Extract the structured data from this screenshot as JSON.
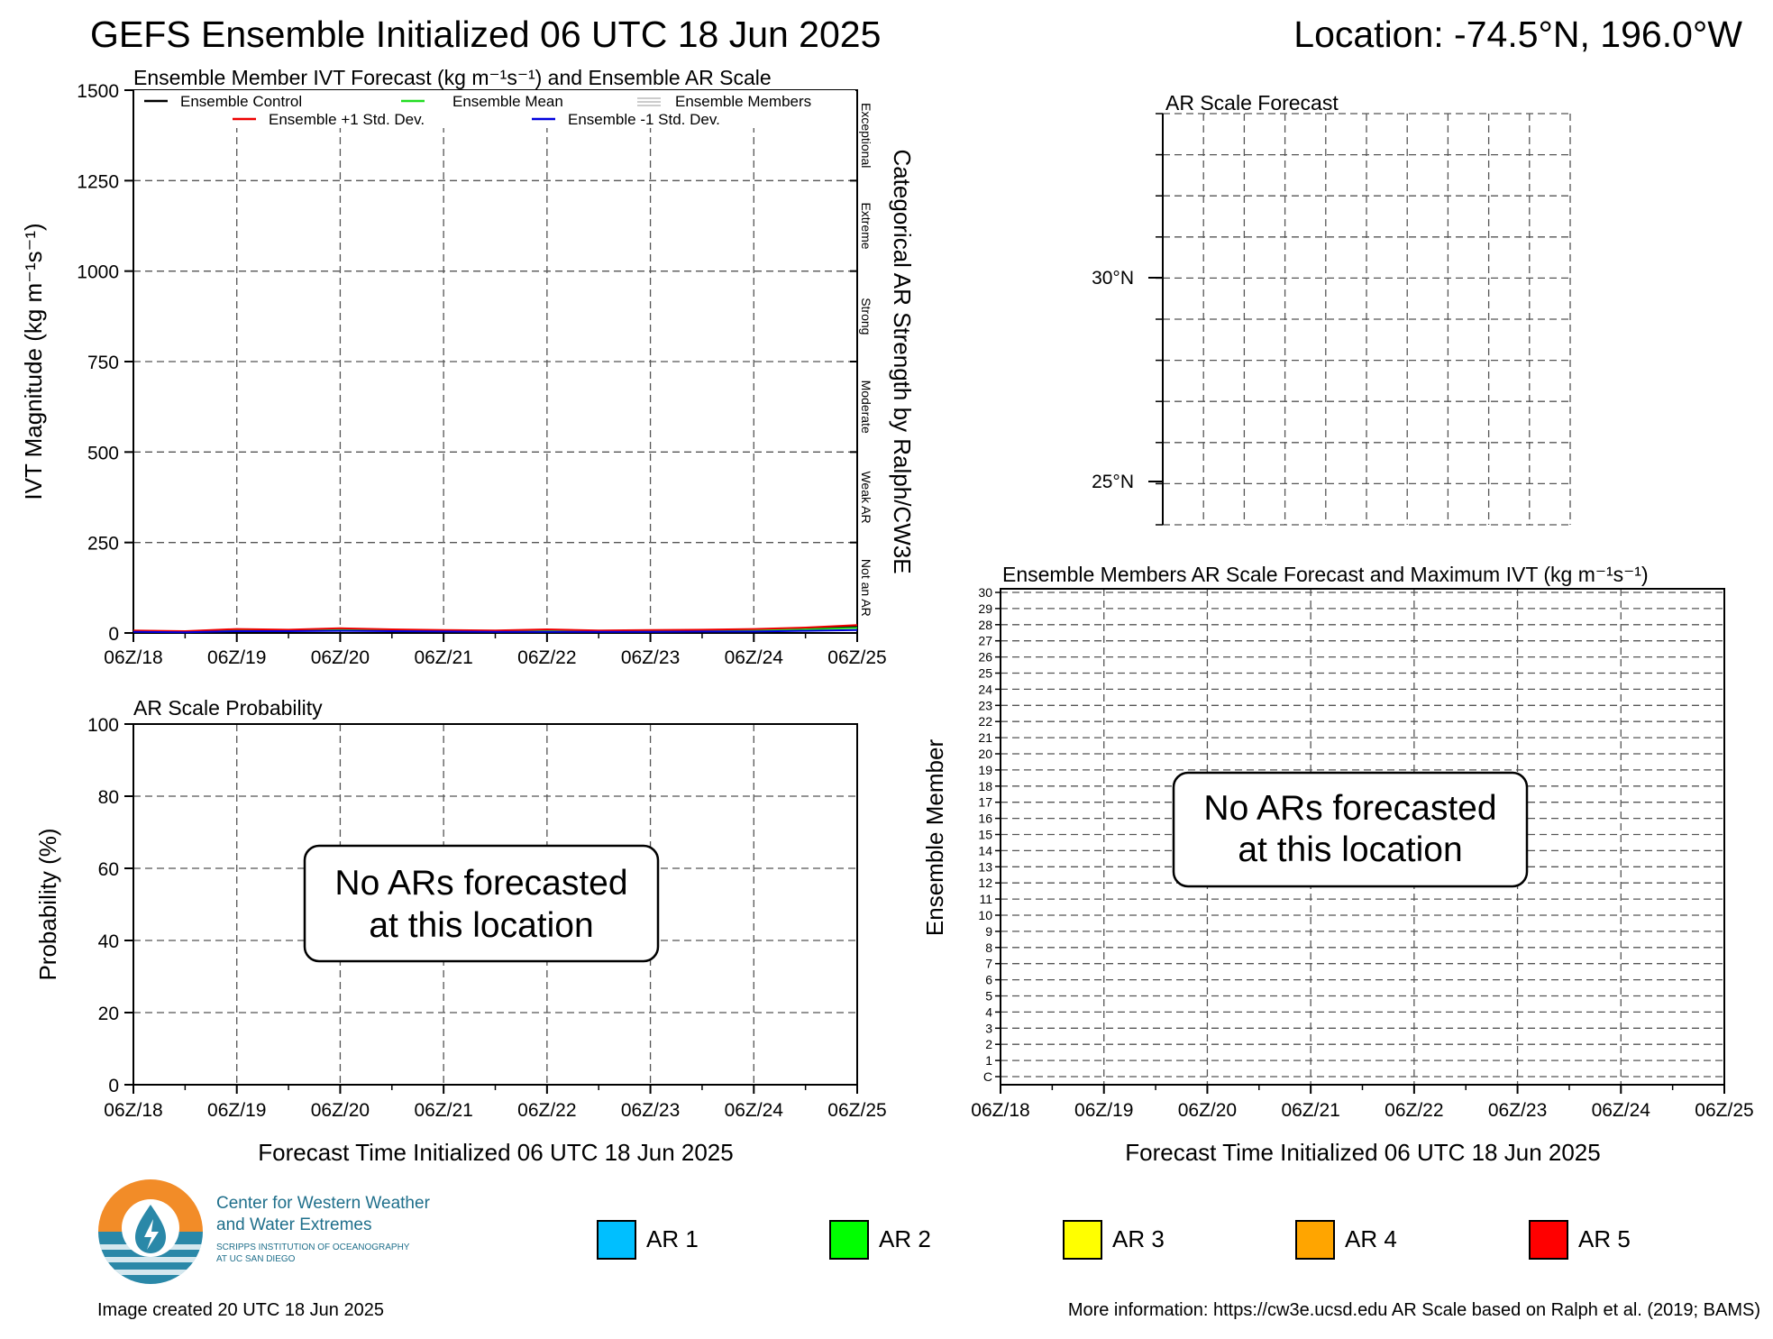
{
  "header": {
    "title": "GEFS Ensemble Initialized 06 UTC 18 Jun 2025",
    "location": "Location: -74.5°N, 196.0°W"
  },
  "ivt_panel": {
    "title": "Ensemble Member IVT Forecast (kg m⁻¹s⁻¹) and Ensemble AR Scale",
    "ylabel": "IVT Magnitude (kg m⁻¹s⁻¹)",
    "right_label": "Categorical AR Strength by Ralph/CW3E",
    "legend": [
      {
        "label": "Ensemble Control",
        "color": "#000000"
      },
      {
        "label": "Ensemble Mean",
        "color": "#22dd22"
      },
      {
        "label": "Ensemble Members",
        "color": "#bbbbbb"
      },
      {
        "label": "Ensemble +1 Std. Dev.",
        "color": "#ee0000"
      },
      {
        "label": "Ensemble -1 Std. Dev.",
        "color": "#0000dd"
      }
    ],
    "categories": [
      "Exceptional",
      "Extreme",
      "Strong",
      "Moderate",
      "Weak AR",
      "Not an AR"
    ]
  },
  "prob_panel": {
    "title": "AR Scale Probability",
    "ylabel": "Probability (%)",
    "xlabel": "Forecast Time Initialized 06 UTC 18 Jun 2025",
    "message_line1": "No ARs forecasted",
    "message_line2": "at this location"
  },
  "map_panel": {
    "title": "AR Scale Forecast",
    "lat_labels": [
      "30°N",
      "25°N"
    ]
  },
  "members_panel": {
    "title": "Ensemble Members AR Scale Forecast and Maximum IVT (kg m⁻¹s⁻¹)",
    "ylabel": "Ensemble Member",
    "xlabel": "Forecast Time Initialized 06 UTC 18 Jun 2025",
    "message_line1": "No ARs forecasted",
    "message_line2": "at this location",
    "member_labels": [
      "C",
      "1",
      "2",
      "3",
      "4",
      "5",
      "6",
      "7",
      "8",
      "9",
      "10",
      "11",
      "12",
      "13",
      "14",
      "15",
      "16",
      "17",
      "18",
      "19",
      "20",
      "21",
      "22",
      "23",
      "24",
      "25",
      "26",
      "27",
      "28",
      "29",
      "30"
    ]
  },
  "ar_legend": [
    {
      "label": "AR 1",
      "color": "#00bfff"
    },
    {
      "label": "AR 2",
      "color": "#00ff00"
    },
    {
      "label": "AR 3",
      "color": "#ffff00"
    },
    {
      "label": "AR 4",
      "color": "#ffa500"
    },
    {
      "label": "AR 5",
      "color": "#ff0000"
    }
  ],
  "logo": {
    "line1": "Center for Western Weather",
    "line2": "and Water Extremes",
    "line3": "SCRIPPS INSTITUTION OF OCEANOGRAPHY",
    "line4": "AT UC SAN DIEGO"
  },
  "footer": {
    "created": "Image created 20 UTC 18 Jun 2025",
    "more_info": "More information: https://cw3e.ucsd.edu AR Scale based on Ralph et al. (2019; BAMS)"
  },
  "chart_data": [
    {
      "type": "line",
      "title": "Ensemble Member IVT Forecast (kg m⁻¹s⁻¹) and Ensemble AR Scale",
      "ylabel": "IVT Magnitude (kg m⁻¹s⁻¹)",
      "x_ticks": [
        "06Z/18",
        "06Z/19",
        "06Z/20",
        "06Z/21",
        "06Z/22",
        "06Z/23",
        "06Z/24",
        "06Z/25"
      ],
      "x_range_hours": [
        0,
        168
      ],
      "ylim": [
        0,
        1500
      ],
      "y_ticks": [
        0,
        250,
        500,
        750,
        1000,
        1250,
        1500
      ],
      "grid": true,
      "x_hours": [
        0,
        12,
        24,
        36,
        48,
        60,
        72,
        84,
        96,
        108,
        120,
        132,
        144,
        156,
        168
      ],
      "series": [
        {
          "name": "Ensemble Control",
          "color": "#000000",
          "values": [
            6,
            4,
            9,
            7,
            11,
            8,
            6,
            5,
            7,
            5,
            6,
            7,
            8,
            12,
            18
          ]
        },
        {
          "name": "Ensemble Mean",
          "color": "#22dd22",
          "values": [
            5,
            4,
            8,
            7,
            9,
            7,
            6,
            5,
            6,
            5,
            5,
            6,
            7,
            10,
            14
          ]
        },
        {
          "name": "Ensemble +1 Std. Dev.",
          "color": "#ee0000",
          "values": [
            7,
            5,
            11,
            9,
            13,
            10,
            8,
            7,
            10,
            7,
            8,
            9,
            11,
            15,
            22
          ]
        },
        {
          "name": "Ensemble -1 Std. Dev.",
          "color": "#0000dd",
          "values": [
            3,
            2,
            5,
            5,
            6,
            5,
            4,
            3,
            3,
            3,
            3,
            4,
            4,
            6,
            8
          ]
        }
      ],
      "category_thresholds": [
        250,
        500,
        750,
        1000,
        1250
      ]
    },
    {
      "type": "line",
      "title": "AR Scale Probability",
      "ylabel": "Probability (%)",
      "xlabel": "Forecast Time Initialized 06 UTC 18 Jun 2025",
      "x_ticks": [
        "06Z/18",
        "06Z/19",
        "06Z/20",
        "06Z/21",
        "06Z/22",
        "06Z/23",
        "06Z/24",
        "06Z/25"
      ],
      "ylim": [
        0,
        100
      ],
      "y_ticks": [
        0,
        20,
        40,
        60,
        80,
        100
      ],
      "grid": true,
      "series": []
    },
    {
      "type": "heatmap",
      "title": "Ensemble Members AR Scale Forecast and Maximum IVT (kg m⁻¹s⁻¹)",
      "ylabel": "Ensemble Member",
      "xlabel": "Forecast Time Initialized 06 UTC 18 Jun 2025",
      "x_ticks": [
        "06Z/18",
        "06Z/19",
        "06Z/20",
        "06Z/21",
        "06Z/22",
        "06Z/23",
        "06Z/24",
        "06Z/25"
      ],
      "grid": true,
      "values": []
    }
  ]
}
